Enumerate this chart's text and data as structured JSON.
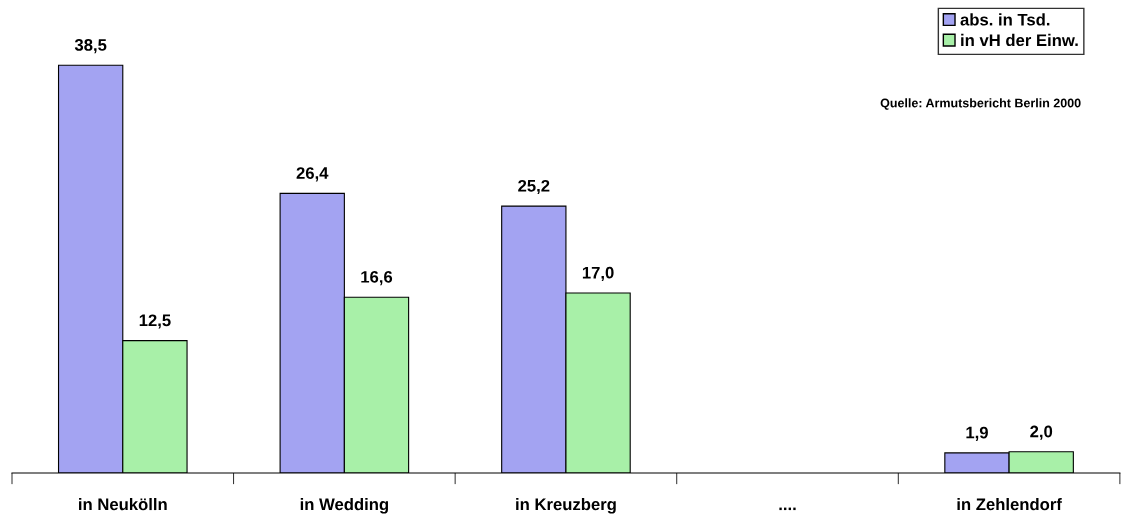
{
  "chart_data": {
    "type": "bar",
    "categories": [
      "in Neukölln",
      "in Wedding",
      "in Kreuzberg",
      "....",
      "in Zehlendorf"
    ],
    "series": [
      {
        "name": "abs. in Tsd.",
        "color": "#a3a3f2",
        "values": [
          38.5,
          26.4,
          25.2,
          null,
          1.9
        ],
        "value_labels": [
          "38,5",
          "26,4",
          "25,2",
          null,
          "1,9"
        ]
      },
      {
        "name": "in vH der Einw.",
        "color": "#a8f0a8",
        "values": [
          12.5,
          16.6,
          17.0,
          null,
          2.0
        ],
        "value_labels": [
          "12,5",
          "16,6",
          "17,0",
          null,
          "2,0"
        ]
      }
    ],
    "grid": false,
    "legend": "top right",
    "annotations": [
      "Quelle: Armutsbericht Berlin 2000"
    ]
  }
}
